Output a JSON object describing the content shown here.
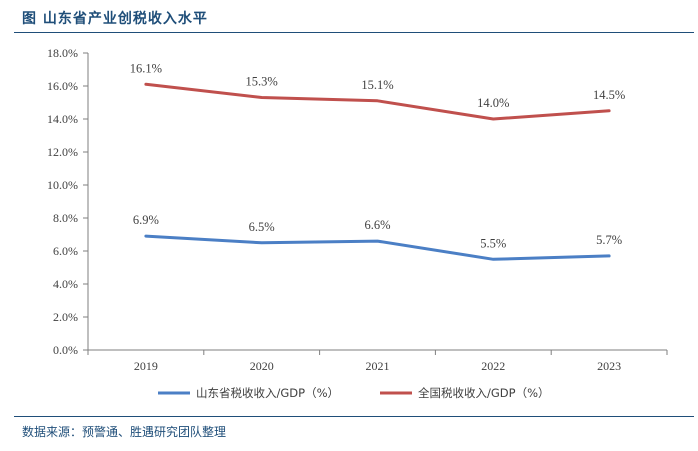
{
  "figure": {
    "title": "图   山东省产业创税收入水平",
    "source": "数据来源：预警通、胜遇研究团队整理"
  },
  "colors": {
    "shandong": "#4b7fc5",
    "national": "#c0504d",
    "axis": "#7f7f7f"
  },
  "chart_data": {
    "type": "line",
    "categories": [
      "2019",
      "2020",
      "2021",
      "2022",
      "2023"
    ],
    "series": [
      {
        "name": "山东省税收收入/GDP（%）",
        "values": [
          6.9,
          6.5,
          6.6,
          5.5,
          5.7
        ],
        "labels": [
          "6.9%",
          "6.5%",
          "6.6%",
          "5.5%",
          "5.7%"
        ]
      },
      {
        "name": "全国税收收入/GDP（%）",
        "values": [
          16.1,
          15.3,
          15.1,
          14.0,
          14.5
        ],
        "labels": [
          "16.1%",
          "15.3%",
          "15.1%",
          "14.0%",
          "14.5%"
        ]
      }
    ],
    "yticks": [
      "0.0%",
      "2.0%",
      "4.0%",
      "6.0%",
      "8.0%",
      "10.0%",
      "12.0%",
      "14.0%",
      "16.0%",
      "18.0%"
    ],
    "ylim": [
      0,
      18
    ],
    "grid": false,
    "legend": "bottom"
  }
}
